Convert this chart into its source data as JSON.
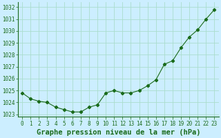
{
  "x": [
    0,
    1,
    2,
    3,
    4,
    5,
    6,
    7,
    8,
    9,
    10,
    11,
    12,
    13,
    14,
    15,
    16,
    17,
    18,
    19,
    20,
    21,
    22,
    23
  ],
  "y": [
    1024.8,
    1024.3,
    1024.1,
    1024.0,
    1023.6,
    1023.4,
    1023.2,
    1023.2,
    1023.6,
    1023.8,
    1024.8,
    1025.0,
    1024.8,
    1024.8,
    1025.0,
    1025.4,
    1025.9,
    1027.2,
    1027.5,
    1028.6,
    1029.5,
    1030.1,
    1031.0,
    1031.8
  ],
  "xlabel": "Graphe pression niveau de la mer (hPa)",
  "line_color": "#1a6b1a",
  "marker": "D",
  "marker_size": 2.2,
  "bg_color": "#cceeff",
  "grid_color": "#aaddcc",
  "ylim": [
    1022.8,
    1032.4
  ],
  "xlim": [
    -0.5,
    23.5
  ],
  "yticks": [
    1023,
    1024,
    1025,
    1026,
    1027,
    1028,
    1029,
    1030,
    1031,
    1032
  ],
  "xticks": [
    0,
    1,
    2,
    3,
    4,
    5,
    6,
    7,
    8,
    9,
    10,
    11,
    12,
    13,
    14,
    15,
    16,
    17,
    18,
    19,
    20,
    21,
    22,
    23
  ],
  "tick_color": "#1a6b1a",
  "tick_fontsize": 5.5,
  "xlabel_fontsize": 7.5,
  "xlabel_fontweight": "bold"
}
